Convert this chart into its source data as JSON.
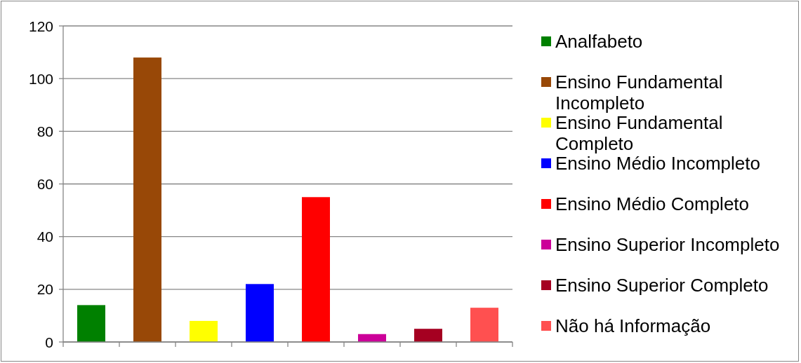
{
  "chart_data": {
    "type": "bar",
    "categories": [
      null,
      null,
      null,
      null,
      null,
      null,
      null,
      null
    ],
    "series": [
      {
        "name": "Analfabeto",
        "color": "#008000",
        "values": [
          14,
          null,
          null,
          null,
          null,
          null,
          null,
          null
        ]
      },
      {
        "name": "Ensino Fundamental Incompleto",
        "color": "#984807",
        "values": [
          null,
          108,
          null,
          null,
          null,
          null,
          null,
          null
        ]
      },
      {
        "name": "Ensino Fundamental Completo",
        "color": "#ffff00",
        "values": [
          null,
          null,
          8,
          null,
          null,
          null,
          null,
          null
        ]
      },
      {
        "name": "Ensino Médio Incompleto",
        "color": "#0000ff",
        "values": [
          null,
          null,
          null,
          22,
          null,
          null,
          null,
          null
        ]
      },
      {
        "name": "Ensino Médio Completo",
        "color": "#ff0000",
        "values": [
          null,
          null,
          null,
          null,
          55,
          null,
          null,
          null
        ]
      },
      {
        "name": "Ensino Superior Incompleto",
        "color": "#cc0099",
        "values": [
          null,
          null,
          null,
          null,
          null,
          3,
          null,
          null
        ]
      },
      {
        "name": "Ensino Superior Completo",
        "color": "#a50021",
        "values": [
          null,
          null,
          null,
          null,
          null,
          null,
          5,
          null
        ]
      },
      {
        "name": "Não há Informação",
        "color": "#ff5050",
        "values": [
          null,
          null,
          null,
          null,
          null,
          null,
          null,
          13
        ]
      }
    ],
    "ylim": [
      0,
      120
    ],
    "yticks": [
      0,
      20,
      40,
      60,
      80,
      100,
      120
    ],
    "grid": "y",
    "legend": "right",
    "tick_labels": "y"
  }
}
